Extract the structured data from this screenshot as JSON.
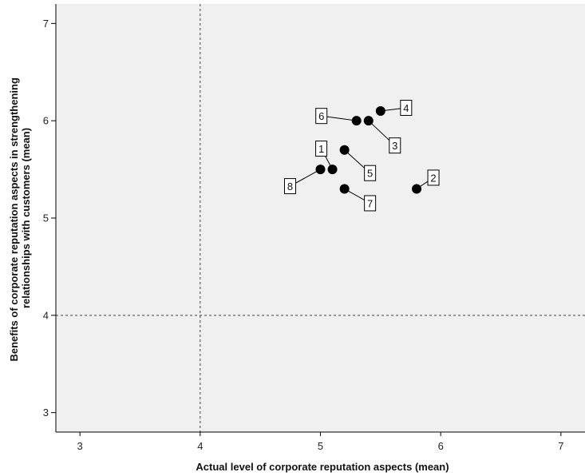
{
  "chart_data": {
    "type": "scatter",
    "xlabel": "Actual level of corporate reputation aspects (mean)",
    "ylabel_lines": [
      "Benefits of corporate reputation aspects in strengthening",
      "relationships with customers (mean)"
    ],
    "xlim": [
      2.8,
      7.2
    ],
    "ylim": [
      2.8,
      7.2
    ],
    "x_ticks": [
      "3",
      "4",
      "5",
      "6",
      "7"
    ],
    "y_ticks": [
      "3",
      "4",
      "5",
      "6",
      "7"
    ],
    "reference_lines": {
      "x": 4,
      "y": 4
    },
    "grid": false,
    "plot_background": "#f0f0f0",
    "marker_color": "#000000",
    "points": [
      {
        "label": "1",
        "x": 5.1,
        "y": 5.5
      },
      {
        "label": "2",
        "x": 5.8,
        "y": 5.3
      },
      {
        "label": "3",
        "x": 5.4,
        "y": 6.0
      },
      {
        "label": "4",
        "x": 5.5,
        "y": 6.1
      },
      {
        "label": "5",
        "x": 5.2,
        "y": 5.7
      },
      {
        "label": "6",
        "x": 5.3,
        "y": 6.0
      },
      {
        "label": "7",
        "x": 5.2,
        "y": 5.3
      },
      {
        "label": "8",
        "x": 5.0,
        "y": 5.5
      }
    ]
  }
}
